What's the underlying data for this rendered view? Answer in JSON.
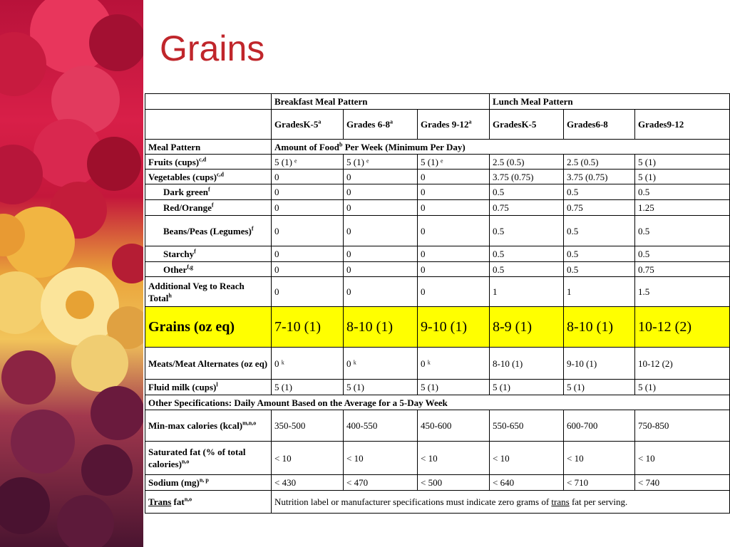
{
  "slide": {
    "title": "Grains"
  },
  "header": {
    "breakfast": "Breakfast Meal Pattern",
    "lunch": "Lunch Meal Pattern",
    "grades": [
      {
        "text": "GradesK-5",
        "sup": "a"
      },
      {
        "text": "Grades 6-8",
        "sup": "a"
      },
      {
        "text": "Grades 9-12",
        "sup": "a"
      },
      {
        "text": "GradesK-5",
        "sup": ""
      },
      {
        "text": "Grades6-8",
        "sup": ""
      },
      {
        "text": "Grades9-12",
        "sup": ""
      }
    ]
  },
  "meal_pattern": {
    "label": "Meal Pattern",
    "amount_pre": "Amount of Food",
    "amount_sup": "b",
    "amount_post": " Per Week  (Minimum Per Day)"
  },
  "rows": [
    {
      "label": "Fruits (cups)",
      "sup": "c,d",
      "vals": [
        "5 (1) ᵉ",
        "5 (1) ᵉ",
        "5 (1) ᵉ",
        "2.5 (0.5)",
        "2.5 (0.5)",
        "5 (1)"
      ]
    },
    {
      "label": "Vegetables (cups)",
      "sup": "c,d",
      "vals": [
        "0",
        "0",
        "0",
        "3.75 (0.75)",
        "3.75 (0.75)",
        "5 (1)"
      ]
    },
    {
      "label": "Dark green",
      "sup": "f",
      "vals": [
        "0",
        "0",
        "0",
        "0.5",
        "0.5",
        "0.5"
      ]
    },
    {
      "label": "Red/Orange",
      "sup": "f",
      "vals": [
        "0",
        "0",
        "0",
        "0.75",
        "0.75",
        "1.25"
      ]
    },
    {
      "label": "Beans/Peas (Legumes)",
      "sup": "f",
      "vals": [
        "0",
        "0",
        "0",
        "0.5",
        "0.5",
        "0.5"
      ]
    },
    {
      "label": "Starchy",
      "sup": "f",
      "vals": [
        "0",
        "0",
        "0",
        "0.5",
        "0.5",
        "0.5"
      ]
    },
    {
      "label": "Other",
      "sup": "f,g",
      "vals": [
        "0",
        "0",
        "0",
        "0.5",
        "0.5",
        "0.75"
      ]
    },
    {
      "label": "Additional Veg to Reach Total",
      "sup": "h",
      "vals": [
        "0",
        "0",
        "0",
        "1",
        "1",
        "1.5"
      ]
    },
    {
      "label": "Grains (oz eq)",
      "sup": "",
      "vals": [
        "7-10 (1)",
        "8-10 (1)",
        "9-10 (1)",
        "8-9 (1)",
        "8-10 (1)",
        "10-12 (2)"
      ]
    },
    {
      "label": "Meats/Meat Alternates (oz eq)",
      "sup": "",
      "vals": [
        "0 ᵏ",
        "0 ᵏ",
        "0 ᵏ",
        "8-10 (1)",
        "9-10 (1)",
        "10-12 (2)"
      ]
    },
    {
      "label": "Fluid milk (cups)",
      "sup": "l",
      "vals": [
        "5 (1)",
        "5 (1)",
        "5 (1)",
        "5 (1)",
        "5 (1)",
        "5 (1)"
      ]
    }
  ],
  "other_spec": "Other Specifications: Daily  Amount Based on the Average for a 5-Day Week",
  "spec_rows": [
    {
      "label": "Min-max calories (kcal)",
      "sup": "m,n,o",
      "vals": [
        "350-500",
        "400-550",
        "450-600",
        "550-650",
        "600-700",
        "750-850"
      ]
    },
    {
      "label": "Saturated fat (% of total calories)",
      "sup": "n,o",
      "vals": [
        "< 10",
        "< 10",
        "< 10",
        "< 10",
        "< 10",
        "< 10"
      ]
    },
    {
      "label": "Sodium (mg)",
      "sup": "n, p",
      "vals": [
        "< 430",
        "< 470",
        "< 500",
        "< 640",
        "< 710",
        "< 740"
      ]
    }
  ],
  "trans_fat": {
    "label": "Trans",
    "label_post": " fat",
    "sup": "n,o",
    "note_pre": "Nutrition label or manufacturer specifications must indicate zero grams of ",
    "note_u": "trans",
    "note_post": " fat per serving."
  },
  "colors": {
    "title": "#c0262b",
    "grains_highlight": "#ffff00"
  }
}
